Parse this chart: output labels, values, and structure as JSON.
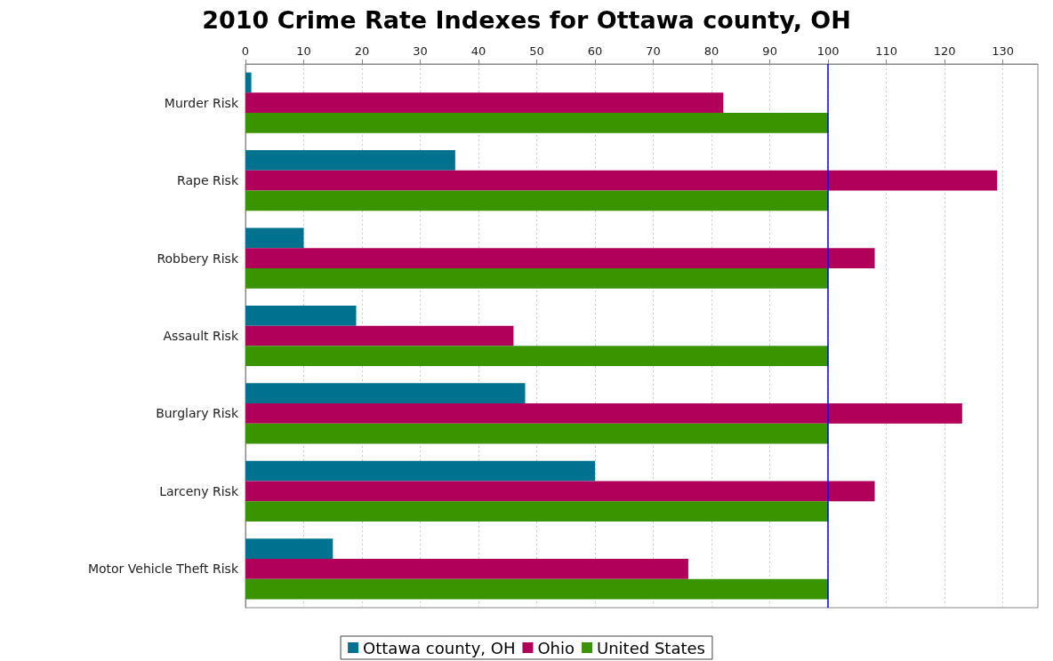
{
  "chart_data": {
    "type": "bar",
    "orientation": "horizontal",
    "title": "2010 Crime Rate Indexes for Ottawa county, OH",
    "categories": [
      "Murder Risk",
      "Rape Risk",
      "Robbery Risk",
      "Assault Risk",
      "Burglary Risk",
      "Larceny Risk",
      "Motor Vehicle Theft Risk"
    ],
    "series": [
      {
        "name": "Ottawa county, OH",
        "color": "#00728f",
        "values": [
          1,
          36,
          10,
          19,
          48,
          60,
          15
        ]
      },
      {
        "name": "Ohio",
        "color": "#b0005a",
        "values": [
          82,
          129,
          108,
          46,
          123,
          108,
          76
        ]
      },
      {
        "name": "United States",
        "color": "#3a9400",
        "values": [
          100,
          100,
          100,
          100,
          100,
          100,
          100
        ]
      }
    ],
    "xlim": [
      0,
      136
    ],
    "xticks": [
      0,
      10,
      20,
      30,
      40,
      50,
      60,
      70,
      80,
      90,
      100,
      110,
      120,
      130
    ],
    "ref_lines": [
      {
        "axis": "x",
        "value": 100,
        "color": "#0000ff"
      }
    ],
    "grid": "x",
    "legend": "bottom"
  }
}
